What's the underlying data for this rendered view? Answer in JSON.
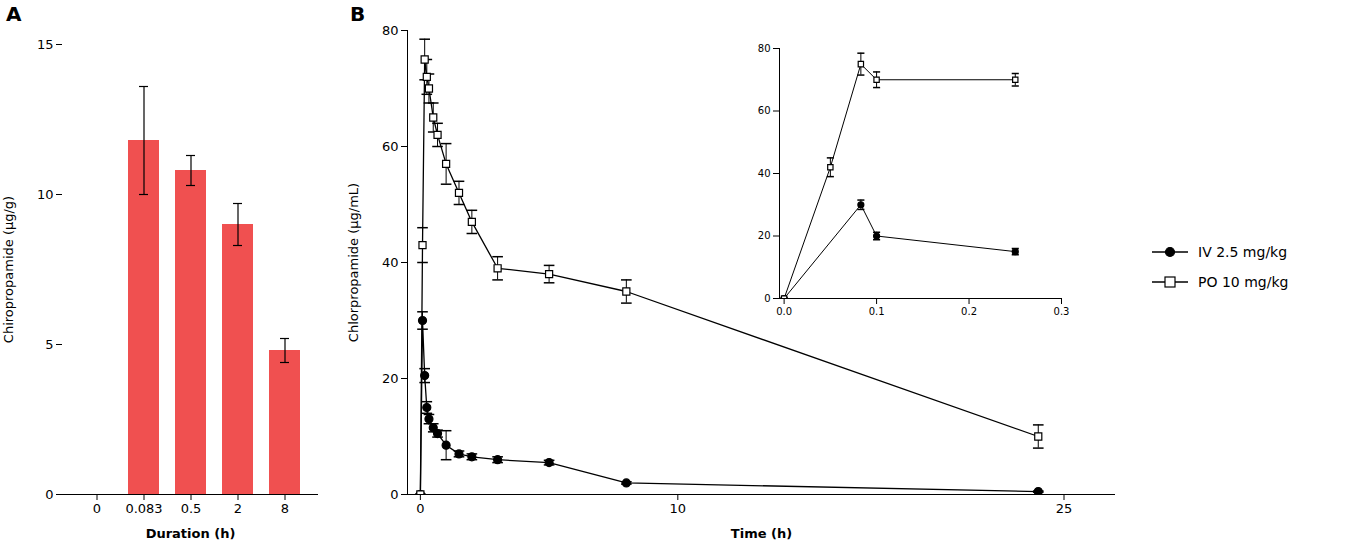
{
  "chart_data": [
    {
      "type": "bar",
      "title": "A",
      "categories": [
        "0",
        "0.083",
        "0.5",
        "2",
        "8"
      ],
      "values": [
        0,
        11.8,
        10.8,
        9.0,
        4.8
      ],
      "errors": [
        0,
        1.8,
        0.5,
        0.7,
        0.4
      ],
      "color": "#f05050",
      "xlabel": "Duration (h)",
      "ylabel": "Chiropropamide (μg/g)",
      "ylim": [
        0,
        15
      ],
      "yticks": [
        0,
        5,
        10,
        15
      ]
    },
    {
      "type": "line",
      "title": "B",
      "xlabel": "Time (h)",
      "ylabel": "Chlorpropamide (μg/mL)",
      "xlim": [
        -0.5,
        27
      ],
      "xticks": [
        0,
        10,
        25
      ],
      "ylim": [
        0,
        80
      ],
      "yticks": [
        0,
        20,
        40,
        60,
        80
      ],
      "legend": "right",
      "series": [
        {
          "name": "IV 2.5 mg/kg",
          "color": "black",
          "marker": "filled_circle",
          "x": [
            0.0,
            0.083,
            0.167,
            0.25,
            0.333,
            0.5,
            0.667,
            1.0,
            1.5,
            2.0,
            3.0,
            5.0,
            8.0,
            24.0
          ],
          "values": [
            0.0,
            30.0,
            20.5,
            15.0,
            13.0,
            11.5,
            10.5,
            8.5,
            7.0,
            6.5,
            6.0,
            5.5,
            2.0,
            0.5
          ],
          "errors": [
            0.0,
            1.5,
            1.2,
            1.0,
            0.8,
            0.7,
            0.6,
            2.5,
            0.5,
            0.5,
            0.5,
            0.4,
            0.2,
            0.1
          ]
        },
        {
          "name": "PO 10 mg/kg",
          "color": "black",
          "marker": "open_square",
          "x": [
            0.0,
            0.083,
            0.167,
            0.25,
            0.333,
            0.5,
            0.667,
            1.0,
            1.5,
            2.0,
            3.0,
            5.0,
            8.0,
            24.0
          ],
          "values": [
            0.0,
            43.0,
            75.0,
            72.0,
            70.0,
            65.0,
            62.0,
            57.0,
            52.0,
            47.0,
            39.0,
            38.0,
            35.0,
            10.0
          ],
          "errors": [
            0.0,
            3.0,
            3.5,
            3.0,
            2.5,
            2.5,
            2.0,
            3.5,
            2.0,
            2.0,
            2.0,
            1.5,
            2.0,
            2.0
          ]
        }
      ]
    },
    {
      "type": "line",
      "xlim": [
        -0.005,
        0.3
      ],
      "xticks": [
        {
          "value": 0,
          "label": "0.0"
        },
        0.1,
        0.2,
        0.3
      ],
      "ylim": [
        0,
        80
      ],
      "yticks": [
        0,
        20,
        40,
        60,
        80
      ],
      "series": [
        {
          "color": "black",
          "marker": "filled_circle",
          "x": [
            0.0,
            0.083,
            0.1,
            0.25
          ],
          "values": [
            0.0,
            30.0,
            20.0,
            15.0
          ],
          "errors": [
            0.0,
            1.5,
            1.2,
            1.0
          ]
        },
        {
          "color": "black",
          "marker": "open_square",
          "x": [
            0.0,
            0.05,
            0.083,
            0.1,
            0.25
          ],
          "values": [
            0.0,
            42.0,
            75.0,
            70.0,
            70.0
          ],
          "errors": [
            0.0,
            3.0,
            3.5,
            2.5,
            2.0
          ]
        }
      ]
    }
  ]
}
